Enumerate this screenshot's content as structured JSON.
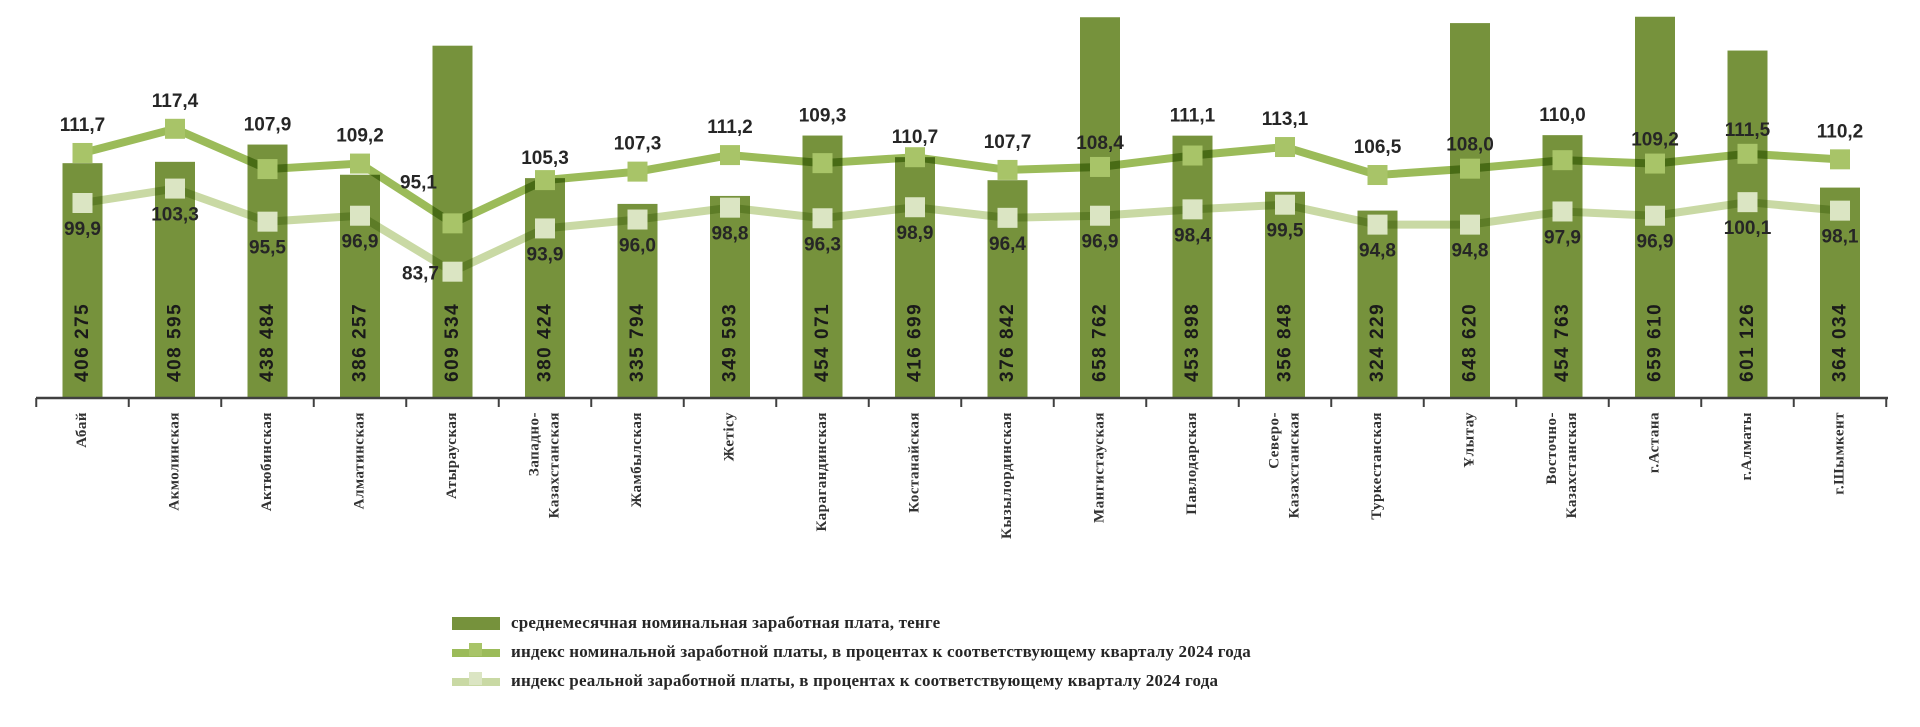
{
  "page": {
    "background": "#ffffff"
  },
  "chart_data": {
    "type": "bar",
    "subtype": "bar-line-combo",
    "title": "",
    "xlabel": "",
    "ylabel": "",
    "grid": false,
    "legend_position": "bottom-left",
    "number_format": {
      "decimal": ",",
      "thousands": "nbsp"
    },
    "axis": {
      "baseline_color": "#404040",
      "label_color": "#333333"
    },
    "categories": [
      "Абай",
      "Акмолинская",
      "Актюбинская",
      "Алматинская",
      "Атырауская",
      "Западно-\nКазахстанская",
      "Жамбылская",
      "Жетісу",
      "Карагандинская",
      "Костанайская",
      "Кызылординская",
      "Мангистауская",
      "Павлодарская",
      "Северо-\nКазахстанская",
      "Туркестанская",
      "Ұлытау",
      "Восточно-\nКазахстанская",
      "г.Астана",
      "г.Алматы",
      "г.Шымкент"
    ],
    "series": [
      {
        "name": "среднемесячная номинальная заработная плата, тенге",
        "type": "bar",
        "color": "#76923C",
        "values": [
          406275,
          408595,
          438484,
          386257,
          609534,
          380424,
          335794,
          349593,
          454071,
          416699,
          376842,
          658762,
          453898,
          356848,
          324229,
          648620,
          454763,
          659610,
          601126,
          364034
        ]
      },
      {
        "name": "индекс номинальной заработной платы, в процентах к соответствующему кварталу 2024 года",
        "type": "line",
        "color": "#9BBB59",
        "marker_color": "#A8C468",
        "values": [
          111.7,
          117.4,
          107.9,
          109.2,
          95.1,
          105.3,
          107.3,
          111.2,
          109.3,
          110.7,
          107.7,
          108.4,
          111.1,
          113.1,
          106.5,
          108.0,
          110.0,
          109.2,
          111.5,
          110.2
        ]
      },
      {
        "name": "индекс реальной заработной платы, в процентах к соответствующему кварталу 2024  года",
        "type": "line",
        "color": "#C9D9A4",
        "marker_color": "#DBE5C3",
        "values": [
          99.9,
          103.3,
          95.5,
          96.9,
          83.7,
          93.9,
          96.0,
          98.8,
          96.3,
          98.9,
          96.4,
          96.9,
          98.4,
          99.5,
          94.8,
          94.8,
          97.9,
          96.9,
          100.1,
          98.1
        ]
      }
    ],
    "value_label_color": "#262626",
    "bar_value_label_color": "#1a1a1a"
  }
}
